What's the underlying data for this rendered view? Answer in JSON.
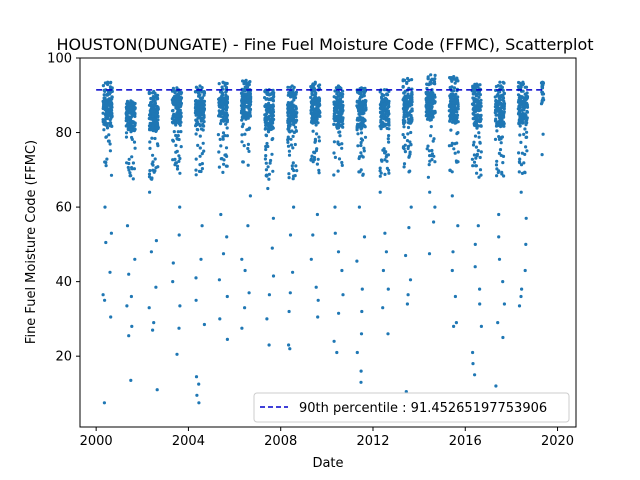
{
  "chart_data": {
    "type": "scatter",
    "title": "HOUSTON(DUNGATE) - Fine Fuel Moisture Code (FFMC), Scatterplot",
    "xlabel": "Date",
    "ylabel": "Fine Fuel Moisture Code (FFMC)",
    "xlim": [
      1999.3,
      2020.8
    ],
    "ylim": [
      1,
      100
    ],
    "xticks": [
      "2000",
      "2004",
      "2008",
      "2012",
      "2016",
      "2020"
    ],
    "yticks": [
      "20",
      "40",
      "60",
      "80",
      "100"
    ],
    "grid": false,
    "legend_position": "lower-right",
    "point_color": "#1f77b4",
    "line_color": "#0000cc",
    "series": [
      {
        "kind": "scatter",
        "seasons": [
          {
            "year": 2000,
            "start": 2000.3,
            "end": 2000.7,
            "median": 85,
            "peak": 93.5,
            "low_points": [
              7.5,
              30.5,
              35,
              36.5,
              42.5,
              50.5,
              53,
              60
            ]
          },
          {
            "year": 2001,
            "start": 2001.3,
            "end": 2001.7,
            "median": 84,
            "peak": 88.5,
            "low_points": [
              13.5,
              25.5,
              28,
              33.5,
              36,
              42,
              46,
              55
            ]
          },
          {
            "year": 2002,
            "start": 2002.3,
            "end": 2002.7,
            "median": 84,
            "peak": 91,
            "low_points": [
              11,
              27,
              29,
              33,
              38.5,
              48,
              51,
              64
            ]
          },
          {
            "year": 2003,
            "start": 2003.3,
            "end": 2003.7,
            "median": 86,
            "peak": 92,
            "low_points": [
              20.5,
              27.5,
              33.5,
              40,
              45,
              52.5,
              60
            ]
          },
          {
            "year": 2004,
            "start": 2004.3,
            "end": 2004.7,
            "median": 85,
            "peak": 92.5,
            "low_points": [
              7.5,
              9.5,
              12.5,
              14.5,
              28.5,
              35,
              41,
              46,
              55
            ]
          },
          {
            "year": 2005,
            "start": 2005.3,
            "end": 2005.7,
            "median": 86,
            "peak": 93.5,
            "low_points": [
              24.5,
              30,
              36,
              40.5,
              47.5,
              52,
              58
            ]
          },
          {
            "year": 2006,
            "start": 2006.3,
            "end": 2006.7,
            "median": 87,
            "peak": 94,
            "low_points": [
              27.5,
              33,
              37,
              43,
              46,
              55,
              63
            ]
          },
          {
            "year": 2007,
            "start": 2007.3,
            "end": 2007.7,
            "median": 84,
            "peak": 91.5,
            "low_points": [
              23,
              30,
              36.5,
              41.5,
              49,
              57,
              65
            ]
          },
          {
            "year": 2008,
            "start": 2008.3,
            "end": 2008.7,
            "median": 84,
            "peak": 92.5,
            "low_points": [
              22,
              23,
              32,
              37,
              42.5,
              52.5,
              60
            ]
          },
          {
            "year": 2009,
            "start": 2009.3,
            "end": 2009.7,
            "median": 86,
            "peak": 93.5,
            "low_points": [
              30.5,
              35,
              38.5,
              46,
              52.5,
              58
            ]
          },
          {
            "year": 2010,
            "start": 2010.3,
            "end": 2010.7,
            "median": 85,
            "peak": 92.5,
            "low_points": [
              21,
              24,
              31.5,
              36.5,
              43,
              48,
              53,
              60
            ]
          },
          {
            "year": 2011,
            "start": 2011.3,
            "end": 2011.7,
            "median": 85,
            "peak": 92,
            "low_points": [
              13,
              16,
              21,
              26,
              32,
              38,
              45.5,
              52,
              60
            ]
          },
          {
            "year": 2012,
            "start": 2012.3,
            "end": 2012.7,
            "median": 85,
            "peak": 91.5,
            "low_points": [
              26,
              33,
              38,
              43,
              48,
              53,
              64
            ]
          },
          {
            "year": 2013,
            "start": 2013.3,
            "end": 2013.7,
            "median": 86,
            "peak": 94.5,
            "low_points": [
              10.5,
              34,
              36.5,
              40.5,
              47,
              54.5,
              60
            ]
          },
          {
            "year": 2014,
            "start": 2014.3,
            "end": 2014.7,
            "median": 87,
            "peak": 95.5,
            "low_points": [
              47.5,
              56,
              60,
              64,
              68
            ]
          },
          {
            "year": 2015,
            "start": 2015.3,
            "end": 2015.7,
            "median": 86,
            "peak": 95,
            "low_points": [
              28,
              29,
              36,
              43,
              48,
              55,
              63
            ]
          },
          {
            "year": 2016,
            "start": 2016.3,
            "end": 2016.7,
            "median": 85,
            "peak": 93,
            "low_points": [
              15,
              18,
              21,
              28,
              34,
              38,
              44,
              50,
              55
            ]
          },
          {
            "year": 2017,
            "start": 2017.3,
            "end": 2017.7,
            "median": 85,
            "peak": 93.5,
            "low_points": [
              12,
              25,
              29,
              34,
              40,
              46,
              52,
              58
            ]
          },
          {
            "year": 2018,
            "start": 2018.3,
            "end": 2018.7,
            "median": 86,
            "peak": 93.5,
            "low_points": [
              33.5,
              36,
              38,
              43,
              50,
              57,
              64
            ]
          },
          {
            "year": 2019,
            "start": 2019.3,
            "end": 2019.4,
            "median": 91,
            "peak": 93.5,
            "low_points": []
          }
        ]
      },
      {
        "kind": "hline",
        "name": "90th percentile : 91.45265197753906",
        "y": 91.45265197753906,
        "style": "dashed"
      }
    ],
    "legend": [
      "90th percentile : 91.45265197753906"
    ]
  }
}
